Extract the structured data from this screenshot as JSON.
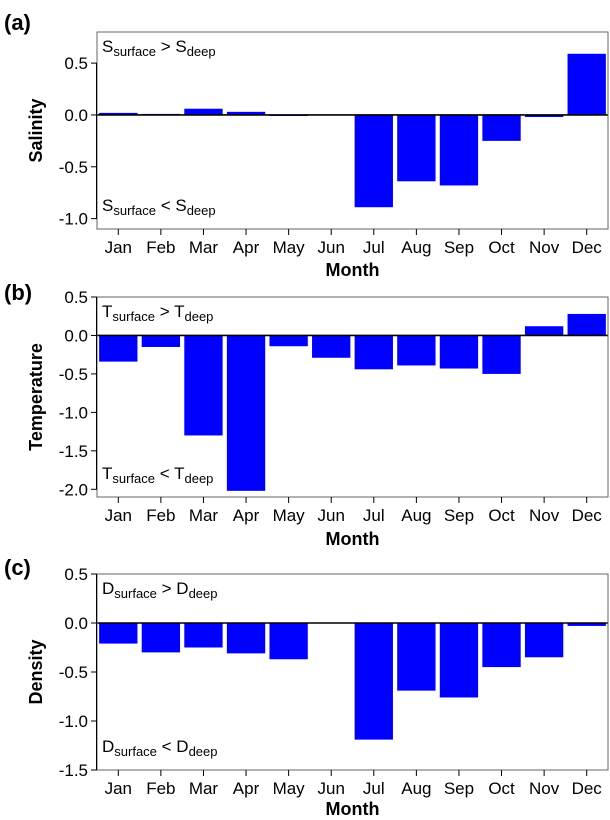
{
  "colors": {
    "bar": "#0000ff",
    "frame": "#000000",
    "background": "#ffffff"
  },
  "chart_data": [
    {
      "type": "bar",
      "panel": "(a)",
      "title": "",
      "xlabel": "Month",
      "ylabel": "Salinity",
      "categories": [
        "Jan",
        "Feb",
        "Mar",
        "Apr",
        "May",
        "Jun",
        "Jul",
        "Aug",
        "Sep",
        "Oct",
        "Nov",
        "Dec"
      ],
      "values": [
        0.02,
        0.01,
        0.06,
        0.03,
        -0.01,
        0.0,
        -0.89,
        -0.64,
        -0.68,
        -0.25,
        -0.02,
        0.59
      ],
      "ylim": [
        -1.1,
        0.8
      ],
      "yticks": [
        "0.5",
        "0.0",
        "-0.5",
        "-1.0"
      ],
      "ytick_values": [
        0.5,
        0.0,
        -0.5,
        -1.0
      ],
      "annotations": {
        "top": {
          "var": "S",
          "op": ">",
          "sub1": "surface",
          "sub2": "deep"
        },
        "bottom": {
          "var": "S",
          "op": "<",
          "sub1": "surface",
          "sub2": "deep"
        }
      }
    },
    {
      "type": "bar",
      "panel": "(b)",
      "title": "",
      "xlabel": "Month",
      "ylabel": "Temperature",
      "categories": [
        "Jan",
        "Feb",
        "Mar",
        "Apr",
        "May",
        "Jun",
        "Jul",
        "Aug",
        "Sep",
        "Oct",
        "Nov",
        "Dec"
      ],
      "values": [
        -0.34,
        -0.15,
        -1.3,
        -2.02,
        -0.14,
        -0.29,
        -0.44,
        -0.39,
        -0.43,
        -0.5,
        0.12,
        0.28
      ],
      "ylim": [
        -2.1,
        0.5
      ],
      "yticks": [
        "0.5",
        "0.0",
        "-0.5",
        "-1.0",
        "-1.5",
        "-2.0"
      ],
      "ytick_values": [
        0.5,
        0.0,
        -0.5,
        -1.0,
        -1.5,
        -2.0
      ],
      "annotations": {
        "top": {
          "var": "T",
          "op": ">",
          "sub1": "surface",
          "sub2": "deep"
        },
        "bottom": {
          "var": "T",
          "op": "<",
          "sub1": "surface",
          "sub2": "deep"
        }
      }
    },
    {
      "type": "bar",
      "panel": "(c)",
      "title": "",
      "xlabel": "Month",
      "ylabel": "Density",
      "categories": [
        "Jan",
        "Feb",
        "Mar",
        "Apr",
        "May",
        "Jun",
        "Jul",
        "Aug",
        "Sep",
        "Oct",
        "Nov",
        "Dec"
      ],
      "values": [
        -0.21,
        -0.3,
        -0.25,
        -0.31,
        -0.37,
        0.0,
        -1.19,
        -0.69,
        -0.76,
        -0.45,
        -0.35,
        -0.03
      ],
      "ylim": [
        -1.5,
        0.5
      ],
      "yticks": [
        "0.5",
        "0.0",
        "-0.5",
        "-1.0",
        "-1.5"
      ],
      "ytick_values": [
        0.5,
        0.0,
        -0.5,
        -1.0,
        -1.5
      ],
      "annotations": {
        "top": {
          "var": "D",
          "op": ">",
          "sub1": "surface",
          "sub2": "deep"
        },
        "bottom": {
          "var": "D",
          "op": "<",
          "sub1": "surface",
          "sub2": "deep"
        }
      }
    }
  ]
}
